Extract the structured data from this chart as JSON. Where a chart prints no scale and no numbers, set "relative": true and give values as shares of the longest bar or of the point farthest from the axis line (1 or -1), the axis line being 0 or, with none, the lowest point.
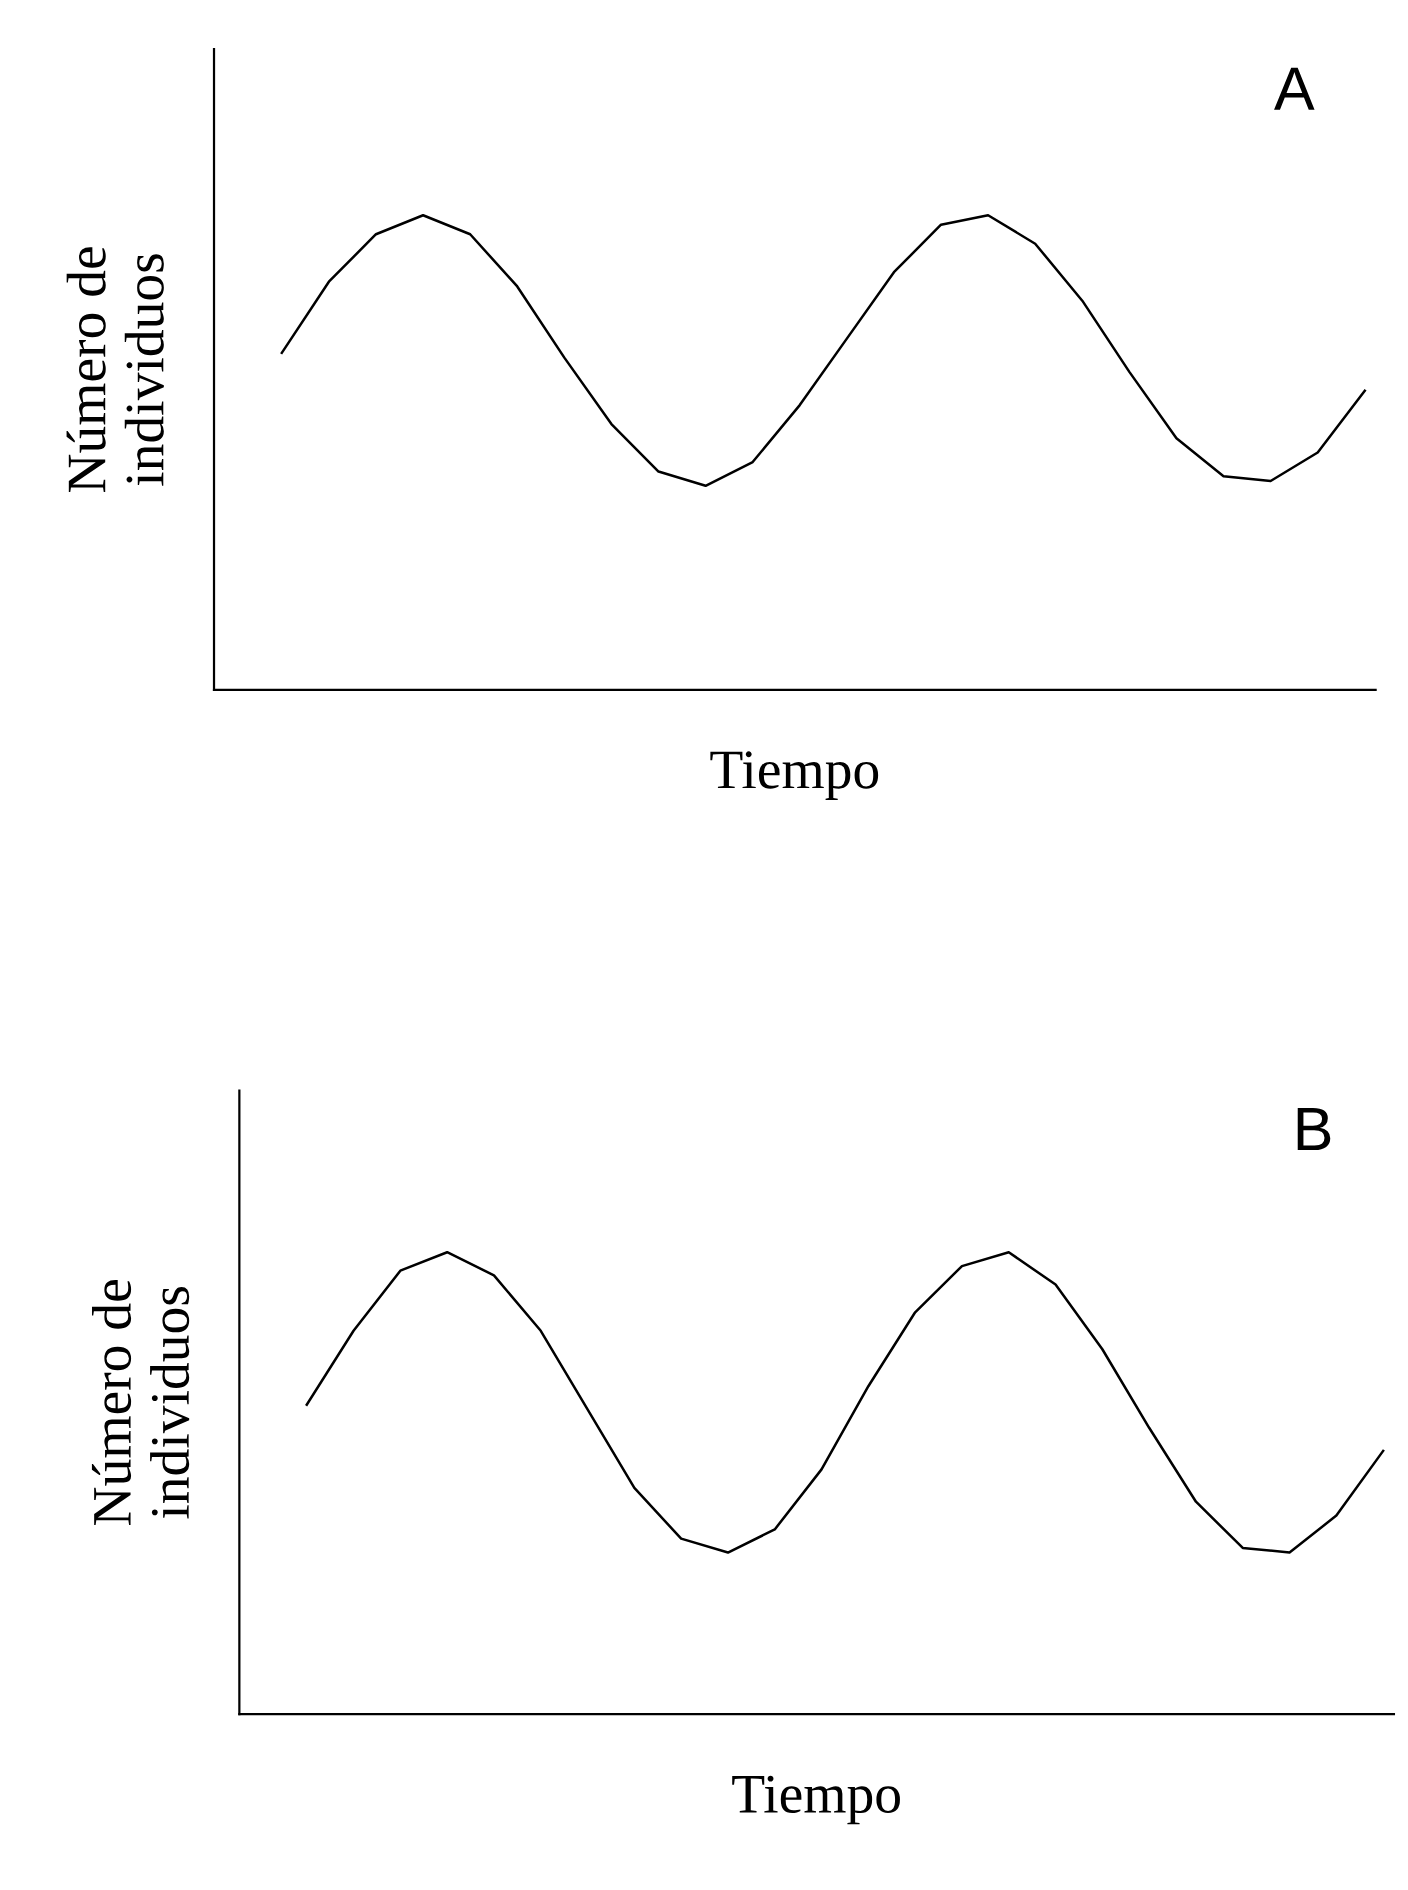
{
  "chart_data": [
    {
      "type": "line",
      "relative": true,
      "ylabel": "Número de\nindividuos",
      "xlabel": "Tiempo",
      "annotations": [
        "A"
      ],
      "categories": [
        null,
        null,
        null,
        null,
        null,
        null,
        null,
        null,
        null,
        null,
        null,
        null,
        null,
        null,
        null,
        null,
        null,
        null,
        null,
        null,
        null,
        null,
        null,
        null
      ],
      "series": [
        {
          "color": "#000000",
          "values": [
            0.71,
            0.86,
            0.96,
            1.0,
            0.96,
            0.85,
            0.7,
            0.56,
            0.46,
            0.43,
            0.48,
            0.6,
            0.74,
            0.88,
            0.98,
            1.0,
            0.94,
            0.82,
            0.67,
            0.53,
            0.45,
            0.44,
            0.5,
            0.63
          ]
        }
      ]
    },
    {
      "type": "line",
      "relative": true,
      "ylabel": "Número de\nindividuos",
      "xlabel": "Tiempo",
      "annotations": [
        "B"
      ],
      "categories": [
        null,
        null,
        null,
        null,
        null,
        null,
        null,
        null,
        null,
        null,
        null,
        null,
        null,
        null,
        null,
        null,
        null,
        null,
        null,
        null,
        null,
        null,
        null,
        null
      ],
      "series": [
        {
          "color": "#000000",
          "values": [
            0.67,
            0.83,
            0.96,
            1.0,
            0.95,
            0.83,
            0.66,
            0.49,
            0.38,
            0.35,
            0.4,
            0.53,
            0.71,
            0.87,
            0.97,
            1.0,
            0.93,
            0.79,
            0.62,
            0.46,
            0.36,
            0.35,
            0.43,
            0.57
          ]
        }
      ]
    }
  ]
}
